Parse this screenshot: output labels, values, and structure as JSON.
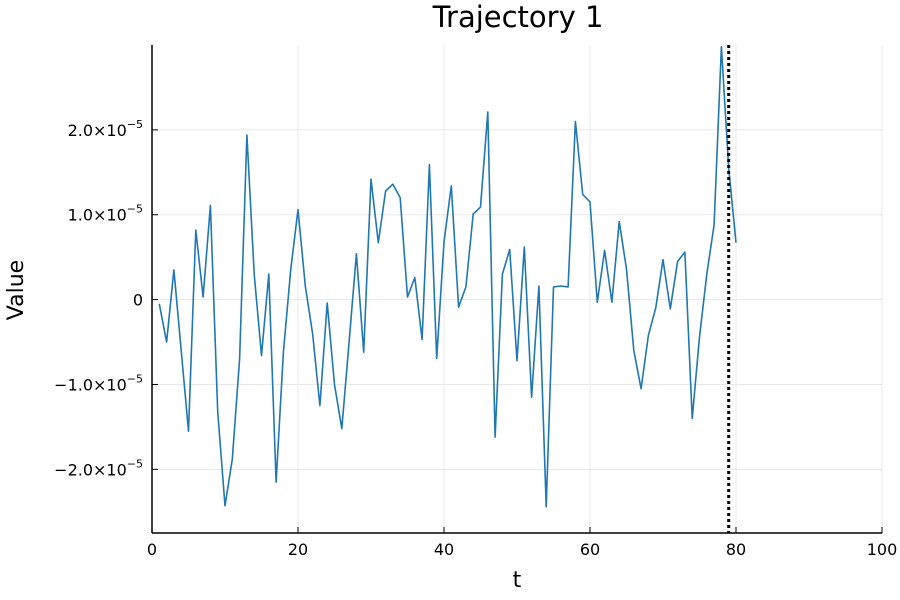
{
  "chart_data": {
    "type": "line",
    "title": "Trajectory 1",
    "xlabel": "t",
    "ylabel": "Value",
    "xlim": [
      0,
      100
    ],
    "ylim": [
      -2.75e-05,
      3e-05
    ],
    "grid": true,
    "legend": "none",
    "x_ticks": [
      {
        "value": 0,
        "label": "0"
      },
      {
        "value": 20,
        "label": "20"
      },
      {
        "value": 40,
        "label": "40"
      },
      {
        "value": 60,
        "label": "60"
      },
      {
        "value": 80,
        "label": "80"
      },
      {
        "value": 100,
        "label": "100"
      }
    ],
    "y_ticks": [
      {
        "value": -2e-05,
        "mantissa": "−2.0×10",
        "exp": "−5"
      },
      {
        "value": -1e-05,
        "mantissa": "−1.0×10",
        "exp": "−5"
      },
      {
        "value": 0,
        "mantissa": "0",
        "exp": ""
      },
      {
        "value": 1e-05,
        "mantissa": "1.0×10",
        "exp": "−5"
      },
      {
        "value": 2e-05,
        "mantissa": "2.0×10",
        "exp": "−5"
      }
    ],
    "series": [
      {
        "color": "#1f77b4",
        "x": [
          1,
          2,
          3,
          4,
          5,
          6,
          7,
          8,
          9,
          10,
          11,
          12,
          13,
          14,
          15,
          16,
          17,
          18,
          19,
          20,
          21,
          22,
          23,
          24,
          25,
          26,
          27,
          28,
          29,
          30,
          31,
          32,
          33,
          34,
          35,
          36,
          37,
          38,
          39,
          40,
          41,
          42,
          43,
          44,
          45,
          46,
          47,
          48,
          49,
          50,
          51,
          52,
          53,
          54,
          55,
          56,
          57,
          58,
          59,
          60,
          61,
          62,
          63,
          64,
          65,
          66,
          67,
          68,
          69,
          70,
          71,
          72,
          73,
          74,
          75,
          76,
          77,
          78,
          79,
          80
        ],
        "y": [
          -5e-07,
          -5e-06,
          3.5e-06,
          -6e-06,
          -1.55e-05,
          8.2e-06,
          3e-07,
          1.11e-05,
          -1.32e-05,
          -2.43e-05,
          -1.88e-05,
          -7e-06,
          1.94e-05,
          3e-06,
          -6.6e-06,
          3e-06,
          -2.15e-05,
          -6.2e-06,
          3.5e-06,
          1.06e-05,
          1.6e-06,
          -4e-06,
          -1.25e-05,
          -4e-07,
          -1e-05,
          -1.52e-05,
          -5e-06,
          5.4e-06,
          -6.2e-06,
          1.42e-05,
          6.7e-06,
          1.28e-05,
          1.36e-05,
          1.2e-05,
          3e-07,
          2.6e-06,
          -4.7e-06,
          1.59e-05,
          -6.9e-06,
          6.8e-06,
          1.34e-05,
          -9e-07,
          1.5e-06,
          1.01e-05,
          1.09e-05,
          2.21e-05,
          -1.62e-05,
          3e-06,
          5.9e-06,
          -7.2e-06,
          6.2e-06,
          -1.15e-05,
          1.6e-06,
          -2.44e-05,
          1.5e-06,
          1.6e-06,
          1.5e-06,
          2.1e-05,
          1.24e-05,
          1.15e-05,
          -3e-07,
          5.8e-06,
          -3e-07,
          9.2e-06,
          3.6e-06,
          -6e-06,
          -1.05e-05,
          -4.2e-06,
          -1e-06,
          4.7e-06,
          -1.1e-06,
          4.5e-06,
          5.6e-06,
          -1.4e-05,
          -4.4e-06,
          3e-06,
          8.8e-06,
          2.98e-05,
          1.55e-05,
          6.7e-06
        ]
      }
    ],
    "vline": {
      "x": 79,
      "color": "#000000",
      "style": "dotted"
    }
  }
}
